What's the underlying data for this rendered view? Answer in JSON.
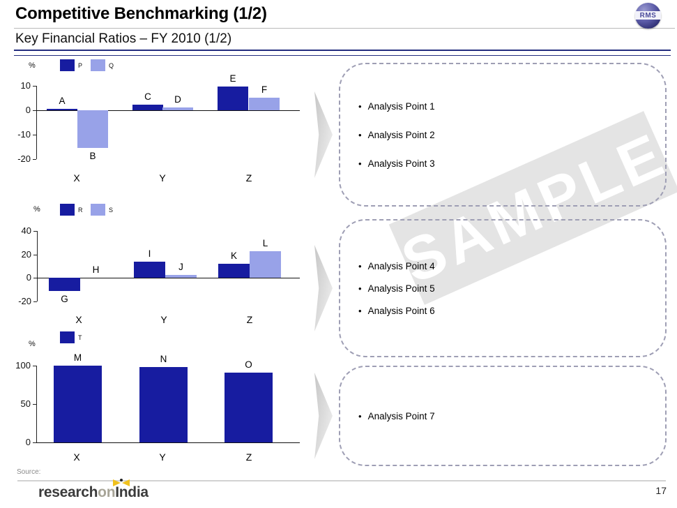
{
  "header": {
    "title": "Competitive Benchmarking (1/2)",
    "subtitle": "Key Financial Ratios – FY 2010 (1/2)",
    "corner_logo_text": "RMS"
  },
  "watermark_text": "SAMPLE",
  "analysis_boxes": [
    {
      "points": [
        "Analysis Point 1",
        "Analysis Point 2",
        "Analysis Point 3"
      ]
    },
    {
      "points": [
        "Analysis Point 4",
        "Analysis Point 5",
        "Analysis Point 6"
      ]
    },
    {
      "points": [
        "Analysis Point 7"
      ]
    }
  ],
  "footer": {
    "source_label": "Source:",
    "page_number": "17",
    "brand": {
      "part1": "research",
      "part2": "on",
      "part3": "India"
    }
  },
  "colors": {
    "series_dark": "#171ca0",
    "series_light": "#98a2e8",
    "box_border": "#9e9eb4",
    "header_rule_navy": "#232d7e",
    "watermark_bg": "#e4e4e4",
    "watermark_text_color": "#ffffff"
  },
  "chart_data": [
    {
      "type": "bar",
      "title": "",
      "unit_label": "%",
      "categories": [
        "X",
        "Y",
        "Z"
      ],
      "yticks": [
        10,
        0,
        -10,
        -20
      ],
      "ylim": [
        -20,
        10
      ],
      "grid": false,
      "legend_position": "top",
      "series": [
        {
          "name": "P",
          "color": "#171ca0",
          "values": [
            0.5,
            2.2,
            9.8
          ],
          "bar_labels": [
            "A",
            "C",
            "E"
          ]
        },
        {
          "name": "Q",
          "color": "#98a2e8",
          "values": [
            -15.5,
            1.1,
            5.2
          ],
          "bar_labels": [
            "B",
            "D",
            "F"
          ]
        }
      ]
    },
    {
      "type": "bar",
      "title": "",
      "unit_label": "%",
      "categories": [
        "X",
        "Y",
        "Z"
      ],
      "yticks": [
        40,
        20,
        0,
        -20
      ],
      "ylim": [
        -20,
        40
      ],
      "grid": false,
      "legend_position": "top",
      "series": [
        {
          "name": "R",
          "color": "#171ca0",
          "values": [
            -11.5,
            13.5,
            12
          ],
          "bar_labels": [
            "G",
            "I",
            "K"
          ]
        },
        {
          "name": "S",
          "color": "#98a2e8",
          "values": [
            0,
            2.5,
            22.5
          ],
          "bar_labels": [
            "H",
            "J",
            "L"
          ]
        }
      ]
    },
    {
      "type": "bar",
      "title": "",
      "unit_label": "%",
      "categories": [
        "X",
        "Y",
        "Z"
      ],
      "yticks": [
        100,
        50,
        0
      ],
      "ylim": [
        0,
        100
      ],
      "grid": false,
      "legend_position": "top",
      "series": [
        {
          "name": "T",
          "color": "#171ca0",
          "values": [
            100,
            98.5,
            91
          ],
          "bar_labels": [
            "M",
            "N",
            "O"
          ]
        }
      ]
    }
  ]
}
